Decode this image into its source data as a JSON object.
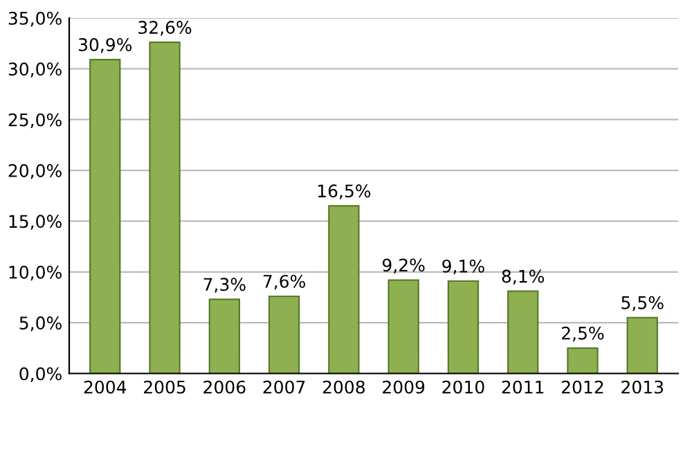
{
  "chart_data": {
    "type": "bar",
    "categories": [
      "2004",
      "2005",
      "2006",
      "2007",
      "2008",
      "2009",
      "2010",
      "2011",
      "2012",
      "2013"
    ],
    "values": [
      30.9,
      32.6,
      7.3,
      7.6,
      16.5,
      9.2,
      9.1,
      8.1,
      2.5,
      5.5
    ],
    "value_labels": [
      "30,9%",
      "32,6%",
      "7,3%",
      "7,6%",
      "16,5%",
      "9,2%",
      "9,1%",
      "8,1%",
      "2,5%",
      "5,5%"
    ],
    "color": "#8fb050",
    "ylim": [
      0,
      35
    ],
    "yticks": [
      {
        "value": 0,
        "label": "0,0%"
      },
      {
        "value": 5,
        "label": "5,0%"
      },
      {
        "value": 10,
        "label": "10,0%"
      },
      {
        "value": 15,
        "label": "15,0%"
      },
      {
        "value": 20,
        "label": "20,0%"
      },
      {
        "value": 25,
        "label": "25,0%"
      },
      {
        "value": 30,
        "label": "30,0%"
      },
      {
        "value": 35,
        "label": "35,0%"
      }
    ],
    "grid": "y"
  }
}
